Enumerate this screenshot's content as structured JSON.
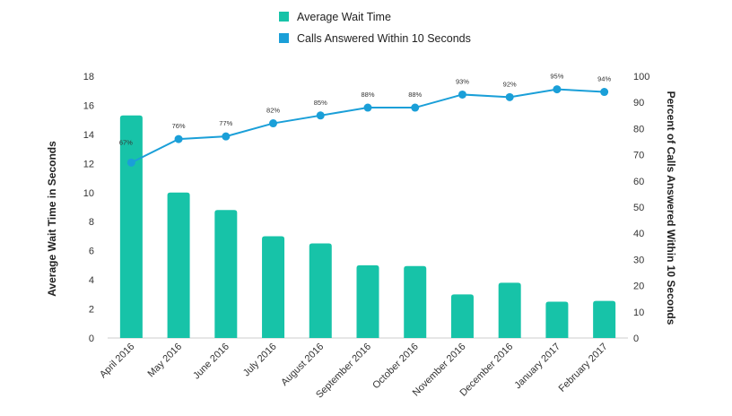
{
  "chart_data": {
    "type": "bar",
    "categories": [
      "April 2016",
      "May 2016",
      "June 2016",
      "July 2016",
      "August 2016",
      "September 2016",
      "October 2016",
      "November 2016",
      "December 2016",
      "January 2017",
      "February 2017"
    ],
    "series": [
      {
        "name": "Average Wait Time",
        "type": "bar",
        "axis": "left",
        "color": "#17c3a8",
        "values": [
          15.3,
          10.0,
          8.8,
          7.0,
          6.5,
          5.0,
          4.95,
          3.0,
          3.8,
          2.5,
          2.55
        ]
      },
      {
        "name": "Calls Answered Within 10 Seconds",
        "type": "line",
        "axis": "right",
        "color": "#1a9fd8",
        "values": [
          67,
          76,
          77,
          82,
          85,
          88,
          88,
          93,
          92,
          95,
          94
        ],
        "data_labels": [
          "67%",
          "76%",
          "77%",
          "82%",
          "85%",
          "88%",
          "88%",
          "93%",
          "92%",
          "95%",
          "94%"
        ]
      }
    ],
    "ylabel": "Average Wait Time in Seconds",
    "ylim": [
      0,
      18
    ],
    "yticks": [
      "0",
      "2",
      "4",
      "6",
      "8",
      "10",
      "12",
      "14",
      "16",
      "18"
    ],
    "y2label": "Percent of Calls Answered Within 10 Seconds",
    "y2lim": [
      0,
      100
    ],
    "y2ticks": [
      "0",
      "10",
      "20",
      "30",
      "40",
      "50",
      "60",
      "70",
      "80",
      "90",
      "100"
    ],
    "grid": false,
    "legend_position": "top-center"
  }
}
